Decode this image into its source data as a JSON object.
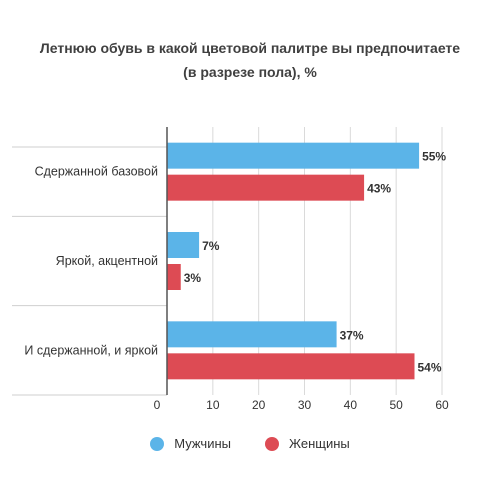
{
  "chart_data": {
    "type": "bar",
    "orientation": "horizontal",
    "title_lines": [
      "Летнюю обувь в какой цветовой палитре вы предпочитаете",
      "(в разрезе пола), %"
    ],
    "categories": [
      "Сдержанной базовой",
      "Яркой, акцентной",
      "И сдержанной, и яркой"
    ],
    "series": [
      {
        "name": "Мужчины",
        "values": [
          55,
          7,
          37
        ],
        "color": "#5BB4E8"
      },
      {
        "name": "Женщины",
        "values": [
          43,
          3,
          54
        ],
        "color": "#DD4B54"
      }
    ],
    "value_suffix": "%",
    "xlim": [
      0,
      60
    ],
    "xticks": [
      0,
      10,
      20,
      30,
      40,
      50,
      60
    ],
    "grid": true,
    "legend_position": "bottom"
  }
}
